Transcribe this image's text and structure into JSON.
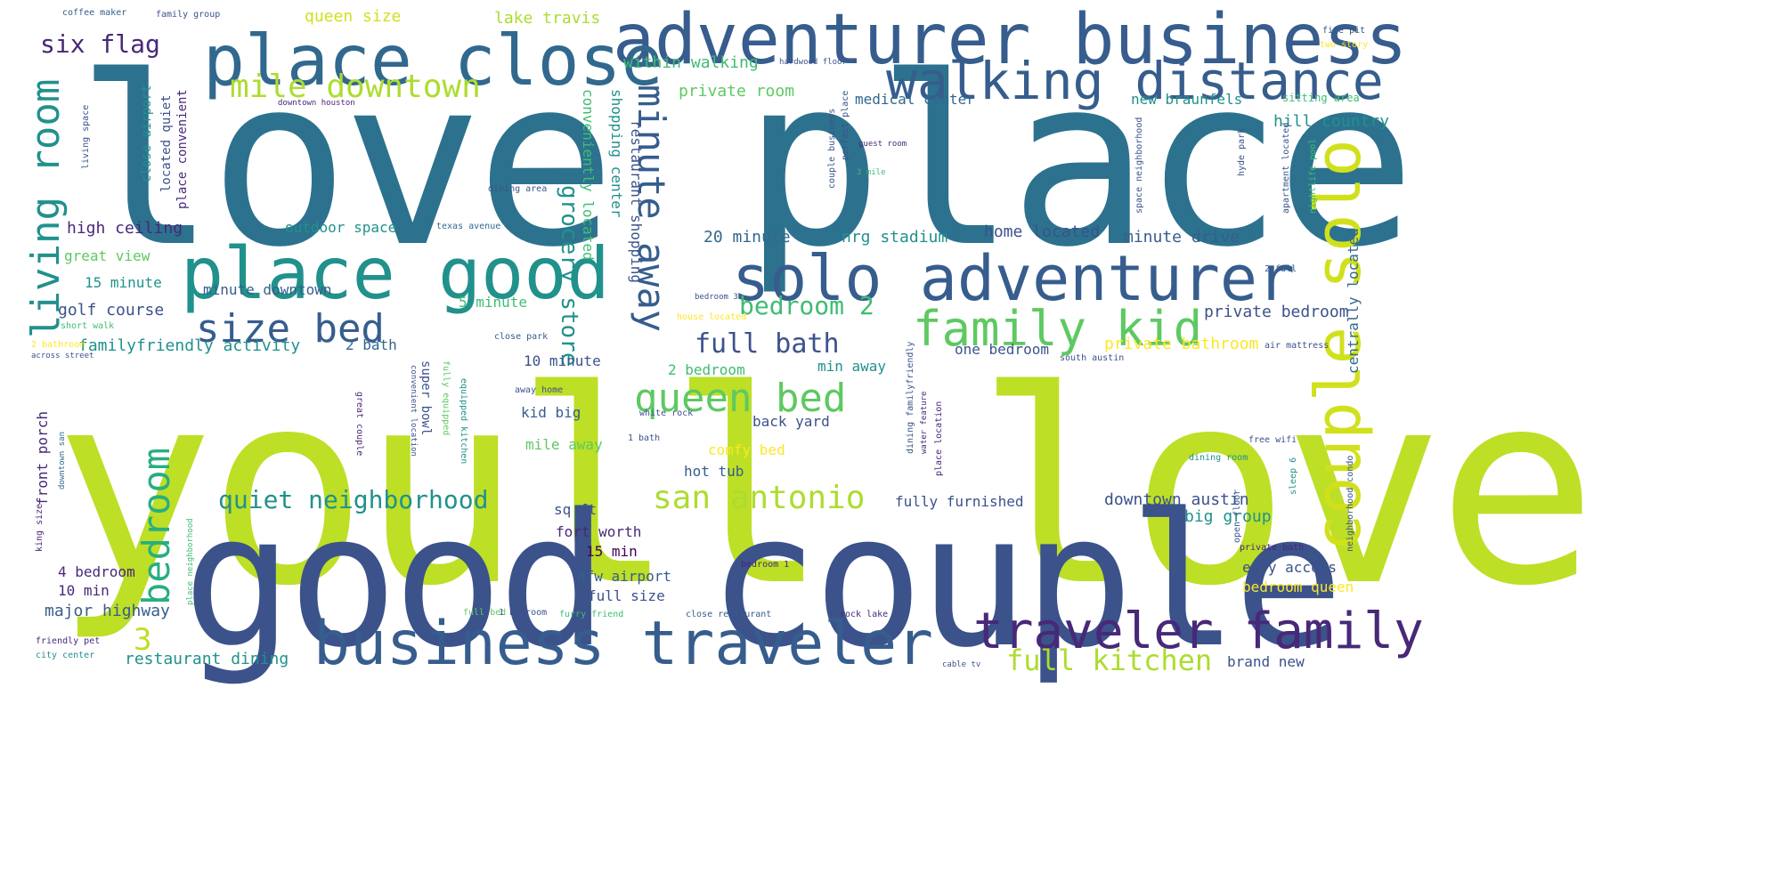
{
  "words": {
    "youll_love": "youll love",
    "love_place": "love place",
    "good_couple": "good couple",
    "adventurer_business": "adventurer business",
    "place_close": "place close",
    "walking_distance": "walking distance",
    "mile_downtown": "mile downtown",
    "six_flag": "six flag",
    "place_good": "place good",
    "solo_adventurer": "solo adventurer",
    "couple_solo": "couple solo",
    "family_kid": "family kid",
    "living_room": "living room",
    "minute_away": "minute away",
    "grocery_store": "grocery store",
    "size_bed": "size bed",
    "full_bath": "full bath",
    "queen_bed": "queen bed",
    "bedroom": "bedroom",
    "bedroom_2": "bedroom 2",
    "san_antonio": "san antonio",
    "quiet_neighborhood": "quiet neighborhood",
    "business_traveler": "business traveler",
    "traveler_family": "traveler family",
    "full_kitchen": "full kitchen",
    "three": "3",
    "queen_size": "queen size",
    "lake_travis": "lake travis",
    "within_walking": "within walking",
    "private_room": "private room",
    "medical_center": "medical center",
    "new_braunfels": "new braunfels",
    "sitting_area": "sitting area",
    "hill_country": "hill country",
    "high_ceiling": "high ceiling",
    "outdoor_space": "outdoor space",
    "twenty_minute": "20 minute",
    "nrg_stadium": "nrg stadium",
    "home_located": "home located",
    "minute_drive": "minute drive",
    "great_view": "great view",
    "fifteen_minute": "15 minute",
    "minute_downtown": "minute downtown",
    "golf_course": "golf course",
    "five_minute": "5 minute",
    "private_bedroom": "private bedroom",
    "family_friendly_activity": "familyfriendly activity",
    "two_bath": "2 bath",
    "ten_minute": "10 minute",
    "two_bedroom": "2 bedroom",
    "min_away": "min away",
    "one_bedroom": "one bedroom",
    "private_bathroom": "private bathroom",
    "back_yard": "back yard",
    "comfy_bed": "comfy bed",
    "hot_tub": "hot tub",
    "mile_away": "mile away",
    "kid_big": "kid big",
    "fully_furnished": "fully furnished",
    "downtown_austin": "downtown austin",
    "big_group": "big group",
    "sq_ft": "sq ft",
    "fort_worth": "fort worth",
    "fifteen_min": "15 min",
    "dfw_airport": "dfw airport",
    "full_size": "full size",
    "four_bedroom": "4 bedroom",
    "ten_min": "10 min",
    "major_highway": "major highway",
    "restaurant_dining": "restaurant dining",
    "full_bed": "full bed",
    "one_bedroom_num": "1 bedroom",
    "furry_friend": "furry friend",
    "close_restaurant": "close restaurant",
    "rock_lake": "rock lake",
    "bedroom_queen": "bedroom queen",
    "easy_access": "easy access",
    "private_bath": "private bath",
    "brand_new": "brand new",
    "front_porch": "front porch",
    "king_size": "king size",
    "coffee_maker": "coffee maker",
    "family_group": "family group",
    "hardwood_floor": "hardwood floor",
    "downtown_houston": "downtown houston",
    "guest_room": "guest room",
    "three_mile": "3 mile",
    "dining_area": "dining area",
    "texas_avenue": "texas avenue",
    "shopping_center": "shopping center",
    "conveniently_located": "conveniently located",
    "restaurant_shopping": "restaurant shopping",
    "centrally_located": "centrally located",
    "located_quiet": "located quiet",
    "close_airport": "close airport",
    "place_convenient": "place convenient",
    "short_walk": "short walk",
    "two_bathroom": "2 bathroom",
    "across_street": "across street",
    "close_park": "close park",
    "away_home": "away home",
    "white_rock": "white rock",
    "one_bath": "1 bath",
    "great_couple": "great couple",
    "super_bowl": "super bowl",
    "fully_equipped": "fully equipped",
    "equipped_kitchen": "equipped kitchen",
    "friendly_pet": "friendly pet",
    "city_center": "city center",
    "cable_tv": "cable tv",
    "south_austin": "south austin",
    "air_mattress": "air mattress",
    "free_wifi": "free wifi",
    "sleep_six": "sleep 6",
    "open_floor": "open floor",
    "neighborhood_condo": "neighborhood condo",
    "two_story": "two story",
    "free_pot": "fire pit",
    "dining_room": "dining room",
    "place_location": "place location",
    "dining_family": "dining familyfriendly",
    "water_feature": "water feature",
    "house_located": "house located",
    "bedroom_1": "bedroom 1",
    "bedroom_3": "bedroom 3",
    "couple_business": "couple business",
    "perfect_place": "perfect place",
    "space_neighborhood": "space neighborhood",
    "apartment_located": "apartment located",
    "nightlife_pool": "nightlife pool",
    "two_full": "2 full",
    "convenient_location": "convenient location",
    "place_neighborhood": "place neighborhood",
    "downtown_san": "downtown san",
    "hyde_park": "hyde park",
    "living_space": "living space"
  },
  "colors": {
    "yellow_green": "#bddf26",
    "lime": "#addc30",
    "teal_blue": "#2c728e",
    "indigo": "#3b528b",
    "slate": "#365d8d",
    "steel": "#31688e",
    "dark_purple": "#482878",
    "deep_purple": "#440154",
    "green_teal": "#21918c",
    "green": "#28ae80",
    "light_green": "#5ec962",
    "mint": "#3fbc73",
    "yellow": "#fde725",
    "pale_yellow": "#d0e11c"
  }
}
